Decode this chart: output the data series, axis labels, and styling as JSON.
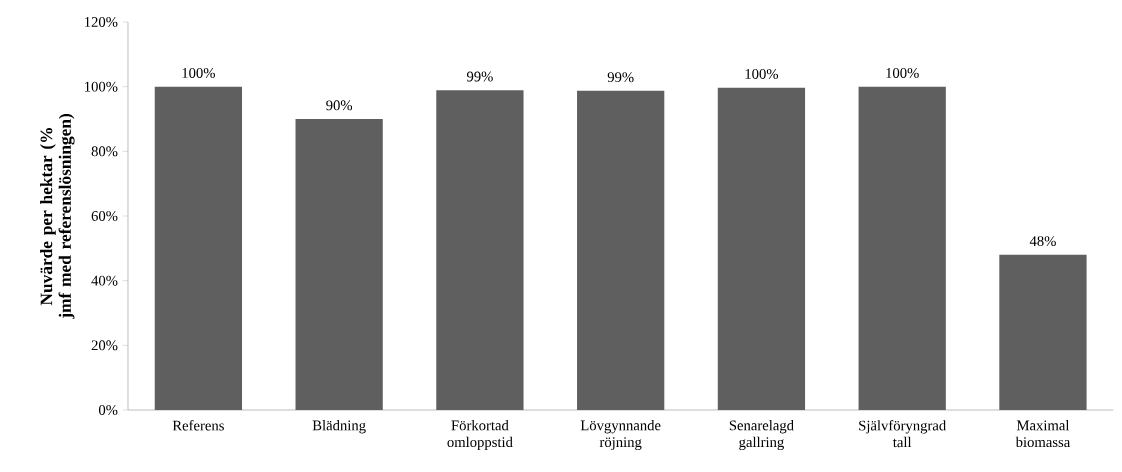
{
  "chart_data": {
    "type": "bar",
    "ylabel": "Nuvärde per hektar (% jmf med referenslösningen)",
    "categories": [
      "Referens",
      "Blädning",
      "Förkortad omloppstid",
      "Lövgynnande röjning",
      "Senarelagd gallring",
      "Självföryngrad tall",
      "Maximal biomassa"
    ],
    "values": [
      100,
      90,
      98.9,
      98.7,
      99.7,
      100,
      48
    ],
    "value_labels": [
      "100%",
      "90%",
      "99%",
      "99%",
      "100%",
      "100%",
      "48%"
    ],
    "color": "#5f5f5f",
    "ylim": [
      0,
      120
    ],
    "yticks": [
      {
        "value": 0,
        "label": "0%"
      },
      {
        "value": 20,
        "label": "20%"
      },
      {
        "value": 40,
        "label": "40%"
      },
      {
        "value": 60,
        "label": "60%"
      },
      {
        "value": 80,
        "label": "80%"
      },
      {
        "value": 100,
        "label": "100%"
      },
      {
        "value": 120,
        "label": "120%"
      }
    ],
    "grid": false
  }
}
